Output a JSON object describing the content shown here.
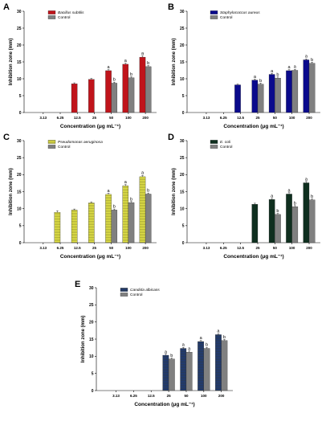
{
  "chart_data": [
    {
      "type": "bar",
      "panel": "A",
      "ylabel": "Inhibition zone (mm)",
      "xlabel": "Concentration (μg mL⁻¹)",
      "ylim": [
        0,
        30
      ],
      "yticks": [
        0,
        5,
        10,
        15,
        20,
        25,
        30
      ],
      "categories": [
        "3.13",
        "6.25",
        "12.5",
        "25",
        "50",
        "100",
        "200"
      ],
      "series": [
        {
          "name": "Bacillus subtilis",
          "values": [
            null,
            null,
            8.5,
            9.8,
            12.4,
            14.3,
            16.4
          ],
          "errors": [
            0,
            0,
            0.3,
            0.3,
            0.3,
            0.3,
            0.4
          ],
          "labels": [
            "",
            "",
            "",
            "",
            "a",
            "a",
            "a"
          ]
        },
        {
          "name": "Control",
          "values": [
            null,
            null,
            null,
            null,
            8.7,
            10.3,
            13.6
          ],
          "errors": [
            0,
            0,
            0,
            0,
            0.3,
            0.3,
            0.3
          ],
          "labels": [
            "",
            "",
            "",
            "",
            "b",
            "b",
            "b"
          ]
        }
      ],
      "colors": [
        "#c0141b",
        "#808080"
      ],
      "pattern": "solid"
    },
    {
      "type": "bar",
      "panel": "B",
      "ylabel": "Inhibition zone (mm)",
      "xlabel": "Concentration (μg mL⁻¹)",
      "ylim": [
        0,
        30
      ],
      "yticks": [
        0,
        5,
        10,
        15,
        20,
        25,
        30
      ],
      "categories": [
        "3.13",
        "6.25",
        "12.5",
        "25",
        "50",
        "100",
        "200"
      ],
      "series": [
        {
          "name": "Staphylococcus aureus",
          "values": [
            null,
            null,
            8.2,
            9.6,
            11.3,
            12.4,
            15.6
          ],
          "errors": [
            0,
            0,
            0.2,
            0.3,
            0.3,
            0.3,
            0.3
          ],
          "labels": [
            "",
            "",
            "",
            "a",
            "a",
            "a",
            "a"
          ]
        },
        {
          "name": "Control",
          "values": [
            null,
            null,
            null,
            8.4,
            10.2,
            12.5,
            14.6
          ],
          "errors": [
            0,
            0,
            0,
            0.3,
            0.3,
            0.3,
            0.3
          ],
          "labels": [
            "",
            "",
            "",
            "b",
            "b",
            "a",
            "b"
          ]
        }
      ],
      "colors": [
        "#0a0a8c",
        "#808080"
      ],
      "pattern": "solid"
    },
    {
      "type": "bar",
      "panel": "C",
      "ylabel": "Inhibition zone (mm)",
      "xlabel": "Concentration (μg mL⁻¹)",
      "ylim": [
        0,
        30
      ],
      "yticks": [
        0,
        5,
        10,
        15,
        20,
        25,
        30
      ],
      "categories": [
        "3.13",
        "6.25",
        "12.5",
        "25",
        "50",
        "100",
        "200"
      ],
      "series": [
        {
          "name": "Pseudomonas aeruginosa",
          "values": [
            null,
            8.9,
            9.6,
            11.7,
            14.2,
            16.7,
            19.4
          ],
          "errors": [
            0,
            0.5,
            0.3,
            0.3,
            0.3,
            0.4,
            0.4
          ],
          "labels": [
            "",
            "",
            "",
            "",
            "a",
            "a",
            "a"
          ]
        },
        {
          "name": "Control",
          "values": [
            null,
            null,
            null,
            null,
            9.6,
            11.8,
            14.3
          ],
          "errors": [
            0,
            0,
            0,
            0,
            0.3,
            0.3,
            0.3
          ],
          "labels": [
            "",
            "",
            "",
            "",
            "b",
            "b",
            "b"
          ]
        }
      ],
      "colors": [
        "#e8e84a",
        "#808080"
      ],
      "pattern": "hstripe"
    },
    {
      "type": "bar",
      "panel": "D",
      "ylabel": "Inhibition zone (mm)",
      "xlabel": "Concentration (μg mL⁻¹)",
      "ylim": [
        0,
        30
      ],
      "yticks": [
        0,
        5,
        10,
        15,
        20,
        25,
        30
      ],
      "categories": [
        "3.13",
        "6.25",
        "12.5",
        "25",
        "50",
        "100",
        "200"
      ],
      "series": [
        {
          "name": "E. coli",
          "values": [
            null,
            null,
            null,
            11.3,
            12.7,
            14.3,
            17.6
          ],
          "errors": [
            0,
            0,
            0,
            0.3,
            0.3,
            0.4,
            0.4
          ],
          "labels": [
            "",
            "",
            "",
            "",
            "a",
            "a",
            "a"
          ]
        },
        {
          "name": "Control",
          "values": [
            null,
            null,
            null,
            null,
            8.3,
            10.6,
            12.6
          ],
          "errors": [
            0,
            0,
            0,
            0,
            0.3,
            0.3,
            0.3
          ],
          "labels": [
            "",
            "",
            "",
            "",
            "b",
            "b",
            "b"
          ]
        }
      ],
      "colors": [
        "#0f2f1f",
        "#808080"
      ],
      "pattern": "solid"
    },
    {
      "type": "bar",
      "panel": "E",
      "ylabel": "Inhibition zone (mm)",
      "xlabel": "Concentration (μg mL⁻¹)",
      "ylim": [
        0,
        30
      ],
      "yticks": [
        0,
        5,
        10,
        15,
        20,
        25,
        30
      ],
      "categories": [
        "3.13",
        "6.25",
        "12.5",
        "25",
        "50",
        "100",
        "200"
      ],
      "series": [
        {
          "name": "Candida albicans",
          "values": [
            null,
            null,
            null,
            10.3,
            12.3,
            14.3,
            16.3
          ],
          "errors": [
            0,
            0,
            0,
            0.3,
            0.3,
            0.3,
            0.3
          ],
          "labels": [
            "",
            "",
            "",
            "a",
            "a",
            "a",
            "a"
          ]
        },
        {
          "name": "Control",
          "values": [
            null,
            null,
            null,
            9.2,
            11.2,
            12.3,
            14.6
          ],
          "errors": [
            0,
            0,
            0,
            0.3,
            0.3,
            0.3,
            0.3
          ],
          "labels": [
            "",
            "",
            "",
            "b",
            "a",
            "b",
            "b"
          ]
        }
      ],
      "colors": [
        "#1f3a78",
        "#808080"
      ],
      "pattern": "hstripe"
    }
  ]
}
